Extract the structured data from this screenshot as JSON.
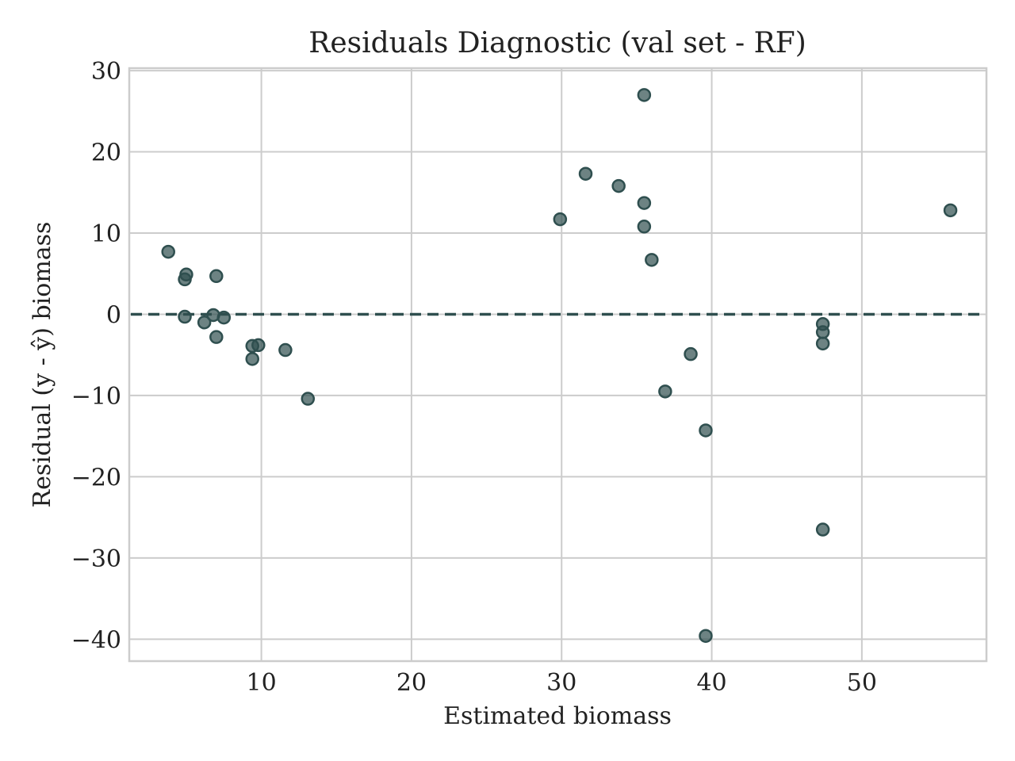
{
  "chart_data": {
    "type": "scatter",
    "title": "Residuals Diagnostic (val set - RF)",
    "xlabel": "Estimated biomass",
    "ylabel": "Residual (y - ŷ) biomass",
    "xlim": [
      1.2,
      58.3
    ],
    "ylim": [
      -42.7,
      30.3
    ],
    "xticks": [
      {
        "value": 10,
        "label": "10"
      },
      {
        "value": 20,
        "label": "20"
      },
      {
        "value": 30,
        "label": "30"
      },
      {
        "value": 40,
        "label": "40"
      },
      {
        "value": 50,
        "label": "50"
      }
    ],
    "yticks": [
      {
        "value": 30,
        "label": "30"
      },
      {
        "value": 20,
        "label": "20"
      },
      {
        "value": 10,
        "label": "10"
      },
      {
        "value": 0,
        "label": "0"
      },
      {
        "value": -10,
        "label": "−10"
      },
      {
        "value": -20,
        "label": "−20"
      },
      {
        "value": -30,
        "label": "−30"
      },
      {
        "value": -40,
        "label": "−40"
      }
    ],
    "grid": true,
    "reference_line": {
      "y": 0,
      "style": "dashed",
      "color": "#2f4f4f"
    },
    "marker_color": "#2f4f4f",
    "marker_opacity": 0.7,
    "points": [
      {
        "x": 3.8,
        "y": 7.7
      },
      {
        "x": 5.0,
        "y": 4.9
      },
      {
        "x": 4.9,
        "y": 4.3
      },
      {
        "x": 4.9,
        "y": -0.3
      },
      {
        "x": 6.2,
        "y": -1.0
      },
      {
        "x": 6.8,
        "y": -0.1
      },
      {
        "x": 7.0,
        "y": 4.7
      },
      {
        "x": 7.5,
        "y": -0.4
      },
      {
        "x": 7.0,
        "y": -2.8
      },
      {
        "x": 9.4,
        "y": -3.9
      },
      {
        "x": 9.8,
        "y": -3.8
      },
      {
        "x": 9.4,
        "y": -5.5
      },
      {
        "x": 11.6,
        "y": -4.4
      },
      {
        "x": 13.1,
        "y": -10.4
      },
      {
        "x": 29.9,
        "y": 11.7
      },
      {
        "x": 31.6,
        "y": 17.3
      },
      {
        "x": 33.8,
        "y": 15.8
      },
      {
        "x": 35.5,
        "y": 27.0
      },
      {
        "x": 35.5,
        "y": 13.7
      },
      {
        "x": 35.5,
        "y": 10.8
      },
      {
        "x": 36.0,
        "y": 6.7
      },
      {
        "x": 36.9,
        "y": -9.5
      },
      {
        "x": 38.6,
        "y": -4.9
      },
      {
        "x": 39.6,
        "y": -14.3
      },
      {
        "x": 39.6,
        "y": -39.6
      },
      {
        "x": 47.4,
        "y": -1.2
      },
      {
        "x": 47.4,
        "y": -2.2
      },
      {
        "x": 47.4,
        "y": -3.6
      },
      {
        "x": 47.4,
        "y": -26.5
      },
      {
        "x": 55.9,
        "y": 12.8
      }
    ]
  }
}
